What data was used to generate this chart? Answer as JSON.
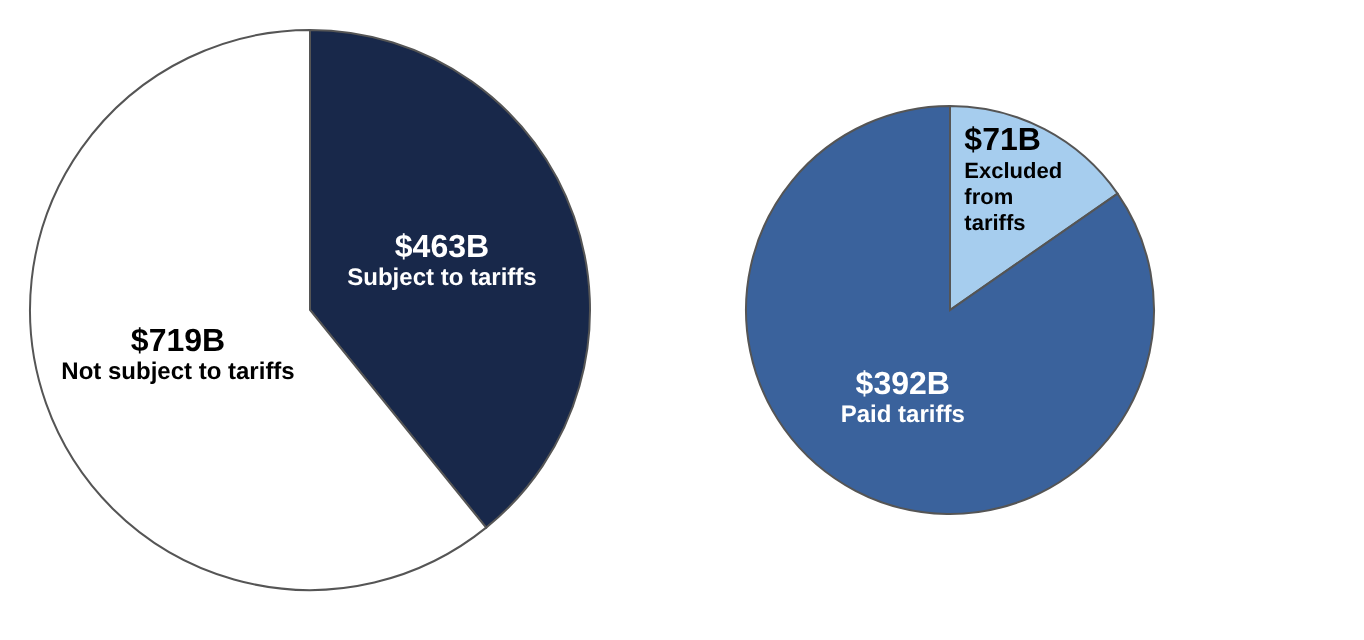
{
  "chart_data": [
    {
      "type": "pie",
      "categories": [
        "Subject to tariffs",
        "Not subject to tariffs"
      ],
      "values": [
        463,
        719
      ],
      "colors": [
        "#18284a",
        "#ffffff"
      ],
      "value_labels": [
        "$463B",
        "$719B"
      ]
    },
    {
      "type": "pie",
      "categories": [
        "Excluded from tariffs",
        "Paid tariffs"
      ],
      "values": [
        71,
        392
      ],
      "colors": [
        "#a6cdee",
        "#3a629c"
      ],
      "value_labels": [
        "$71B",
        "$392B"
      ]
    }
  ]
}
